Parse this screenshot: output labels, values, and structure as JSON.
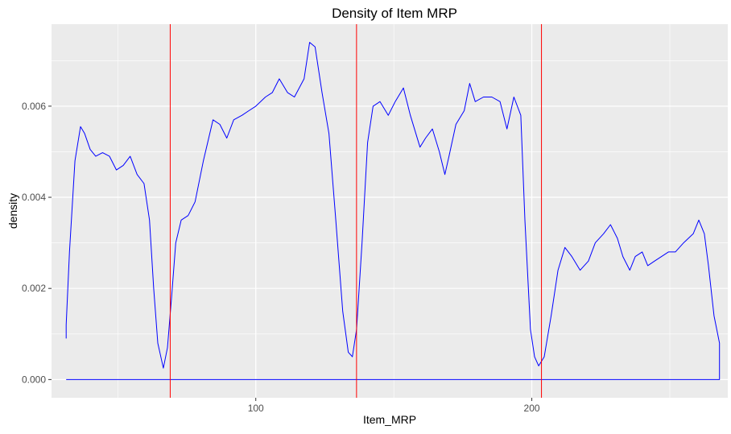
{
  "chart_data": {
    "type": "line",
    "title": "Density of Item MRP",
    "xlabel": "Item_MRP",
    "ylabel": "density",
    "xlim": [
      26,
      271
    ],
    "ylim": [
      -0.0004,
      0.0078
    ],
    "x_ticks": [
      100,
      200
    ],
    "y_ticks": [
      0.0,
      0.002,
      0.004,
      0.006
    ],
    "x_tick_labels": [
      "100",
      "200"
    ],
    "y_tick_labels": [
      "0.000",
      "0.002",
      "0.004",
      "0.006"
    ],
    "grid": true,
    "legend": "none",
    "series": [
      {
        "color": "#0000ff",
        "x": [
          31.3,
          31.3,
          32.5,
          34.5,
          36.5,
          38.0,
          40.0,
          42.0,
          44.5,
          47.0,
          49.5,
          52.0,
          54.5,
          57.0,
          59.5,
          61.5,
          63.0,
          64.5,
          66.5,
          68.0,
          69.5,
          71.0,
          73.0,
          75.5,
          78.0,
          81.0,
          84.5,
          87.0,
          89.5,
          92.0,
          95.0,
          97.5,
          100.0,
          103.5,
          106.0,
          108.5,
          111.5,
          114.0,
          117.5,
          119.5,
          121.5,
          124.0,
          126.5,
          129.0,
          131.5,
          133.5,
          135.0,
          136.5,
          138.5,
          140.5,
          142.5,
          145.0,
          148.0,
          150.5,
          153.5,
          156.0,
          159.5,
          161.5,
          164.0,
          166.5,
          168.5,
          170.0,
          172.5,
          175.5,
          177.5,
          179.5,
          182.5,
          185.5,
          188.5,
          191.0,
          193.5,
          196.0,
          197.5,
          199.5,
          201.0,
          202.5,
          204.5,
          207.0,
          209.5,
          212.0,
          214.5,
          217.5,
          220.5,
          223.0,
          226.0,
          228.5,
          231.0,
          233.0,
          235.5,
          237.5,
          240.0,
          242.0,
          244.5,
          247.0,
          249.5,
          252.0,
          255.0,
          258.5,
          260.5,
          262.5,
          264.0,
          266.0,
          268.0,
          268.0,
          31.3
        ],
        "y": [
          0.0009,
          0.0012,
          0.0028,
          0.0048,
          0.00555,
          0.0054,
          0.00505,
          0.0049,
          0.00498,
          0.0049,
          0.0046,
          0.0047,
          0.0049,
          0.0045,
          0.0043,
          0.0035,
          0.002,
          0.0008,
          0.00025,
          0.0007,
          0.0018,
          0.003,
          0.0035,
          0.0036,
          0.0039,
          0.0048,
          0.0057,
          0.0056,
          0.0053,
          0.0057,
          0.0058,
          0.0059,
          0.006,
          0.0062,
          0.0063,
          0.0066,
          0.0063,
          0.0062,
          0.0066,
          0.0074,
          0.0073,
          0.0063,
          0.0054,
          0.0035,
          0.0015,
          0.0006,
          0.0005,
          0.0011,
          0.003,
          0.0052,
          0.006,
          0.0061,
          0.0058,
          0.0061,
          0.0064,
          0.0058,
          0.0051,
          0.0053,
          0.0055,
          0.005,
          0.0045,
          0.0049,
          0.0056,
          0.0059,
          0.0065,
          0.0061,
          0.0062,
          0.0062,
          0.0061,
          0.0055,
          0.0062,
          0.0058,
          0.0035,
          0.0011,
          0.0005,
          0.0003,
          0.0005,
          0.0014,
          0.0024,
          0.0029,
          0.0027,
          0.0024,
          0.0026,
          0.003,
          0.0032,
          0.0034,
          0.0031,
          0.0027,
          0.0024,
          0.0027,
          0.0028,
          0.0025,
          0.0026,
          0.0027,
          0.0028,
          0.0028,
          0.003,
          0.0032,
          0.0035,
          0.0032,
          0.0025,
          0.0014,
          0.0008,
          0.0,
          0.0
        ]
      }
    ],
    "vlines": {
      "color": "#ff0000",
      "x": [
        69.0,
        136.5,
        203.5
      ]
    },
    "colors": {
      "panel_background": "#ebebeb",
      "grid": "#ffffff",
      "density_line": "#0000ff",
      "vline": "#ff0000"
    }
  }
}
